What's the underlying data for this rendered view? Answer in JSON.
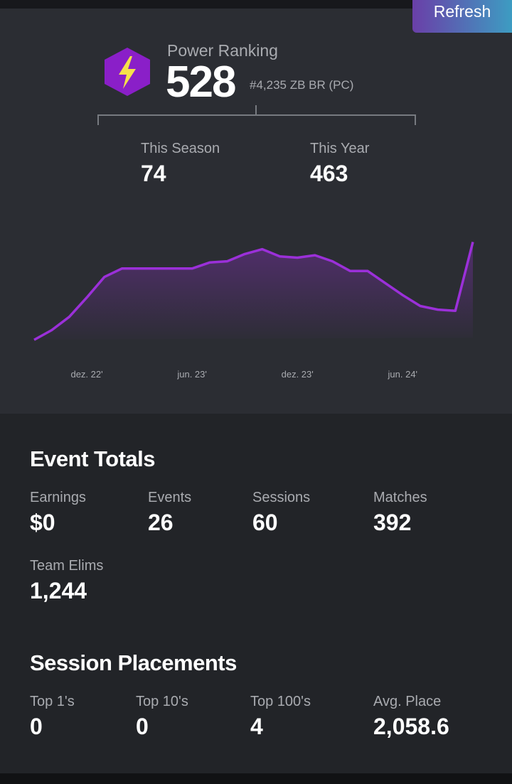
{
  "header": {
    "button": "Refresh",
    "ranking_label": "Power Ranking",
    "ranking_value": "528",
    "ranking_rank": "#4,235 ZB BR (PC)",
    "season_label": "This Season",
    "season_value": "74",
    "year_label": "This Year",
    "year_value": "463"
  },
  "chart_data": {
    "type": "area",
    "color": "#9b30d9",
    "categories": [
      null,
      null,
      null,
      "dez. 22'",
      null,
      null,
      null,
      null,
      null,
      "jun. 23'",
      null,
      null,
      null,
      null,
      null,
      "dez. 23'",
      null,
      null,
      null,
      null,
      null,
      "jun. 24'",
      null,
      null,
      null,
      null
    ],
    "values": [
      7,
      15,
      26,
      42,
      59,
      66,
      66,
      66,
      66,
      66,
      71,
      72,
      78,
      82,
      76,
      75,
      77,
      72,
      64,
      64,
      54,
      44,
      35,
      32,
      31,
      88
    ],
    "ylim": [
      0,
      100
    ]
  },
  "event_totals": {
    "title": "Event Totals",
    "stats": [
      {
        "label": "Earnings",
        "value": "$0"
      },
      {
        "label": "Events",
        "value": "26"
      },
      {
        "label": "Sessions",
        "value": "60"
      },
      {
        "label": "Matches",
        "value": "392"
      },
      {
        "label": "Team Elims",
        "value": "1,244"
      }
    ]
  },
  "session_placements": {
    "title": "Session Placements",
    "stats": [
      {
        "label": "Top 1's",
        "value": "0"
      },
      {
        "label": "Top 10's",
        "value": "0"
      },
      {
        "label": "Top 100's",
        "value": "4"
      },
      {
        "label": "Avg. Place",
        "value": "2,058.6"
      }
    ]
  }
}
